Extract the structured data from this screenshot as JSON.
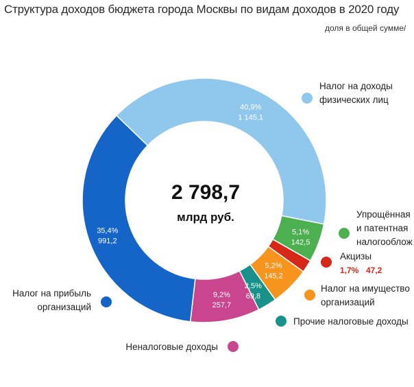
{
  "title": "Структура доходов бюджета города Москвы по видам доходов в 2020 году",
  "subtitle": "доля в общей сумме/",
  "center": {
    "value": "2 798,7",
    "unit": "млрд руб."
  },
  "chart_data": {
    "type": "pie",
    "donut": true,
    "total": 2798.7,
    "unit": "млрд руб.",
    "slices": [
      {
        "name": "Налог на доходы физических лиц",
        "legend_lines": [
          "Налог на доходы",
          "физических лиц"
        ],
        "percent": 40.9,
        "percent_label": "40,9%",
        "value": 1145.1,
        "value_label": "1 145,1",
        "color": "#8fc8ec"
      },
      {
        "name": "Упрощённая и патентная налогооблож",
        "legend_lines": [
          "Упрощённая",
          "и патентная",
          "налогооблож"
        ],
        "percent": 5.1,
        "percent_label": "5,1%",
        "value": 142.5,
        "value_label": "142,5",
        "color": "#4caf50"
      },
      {
        "name": "Акцизы",
        "legend_lines": [
          "Акцизы"
        ],
        "percent": 1.7,
        "percent_label": "1,7%",
        "value": 47.2,
        "value_label": "47,2",
        "color": "#d62718"
      },
      {
        "name": "Налог на имущество организаций",
        "legend_lines": [
          "Налог на имущество",
          "организаций"
        ],
        "percent": 5.2,
        "percent_label": "5,2%",
        "value": 145.2,
        "value_label": "145,2",
        "color": "#f7941d"
      },
      {
        "name": "Прочие налоговые доходы",
        "legend_lines": [
          "Прочие налоговые доходы"
        ],
        "percent": 2.5,
        "percent_label": "2,5%",
        "value": 69.8,
        "value_label": "69,8",
        "color": "#17918a"
      },
      {
        "name": "Неналоговые доходы",
        "legend_lines": [
          "Неналоговые доходы"
        ],
        "percent": 9.2,
        "percent_label": "9,2%",
        "value": 257.7,
        "value_label": "257,7",
        "color": "#c9468f"
      },
      {
        "name": "Налог на прибыль организаций",
        "legend_lines": [
          "Налог на прибыль",
          "организаций"
        ],
        "percent": 35.4,
        "percent_label": "35,4%",
        "value": 991.2,
        "value_label": "991,2",
        "color": "#1565c8"
      }
    ]
  }
}
